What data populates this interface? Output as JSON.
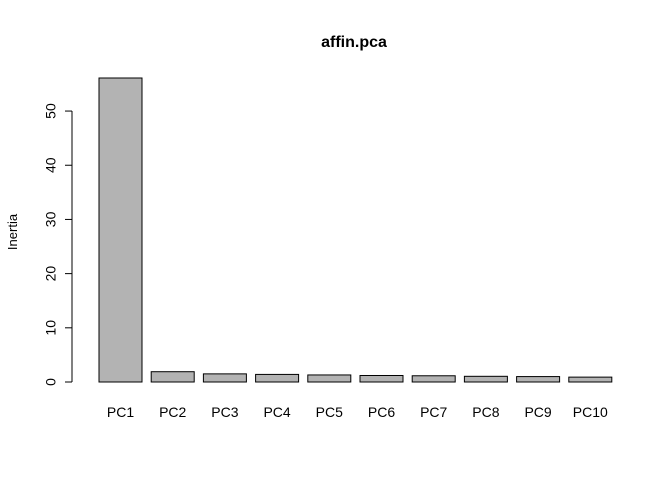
{
  "chart_data": {
    "type": "bar",
    "title": "affin.pca",
    "xlabel": "",
    "ylabel": "Inertia",
    "categories": [
      "PC1",
      "PC2",
      "PC3",
      "PC4",
      "PC5",
      "PC6",
      "PC7",
      "PC8",
      "PC9",
      "PC10"
    ],
    "values": [
      56.1,
      1.9,
      1.5,
      1.4,
      1.3,
      1.2,
      1.15,
      1.05,
      1.0,
      0.9
    ],
    "ylim": [
      0,
      56.1
    ],
    "yticks": [
      0,
      10,
      20,
      30,
      40,
      50
    ],
    "grid": false,
    "bar_color": "#b3b3b3",
    "bar_border_color": "#000000"
  }
}
